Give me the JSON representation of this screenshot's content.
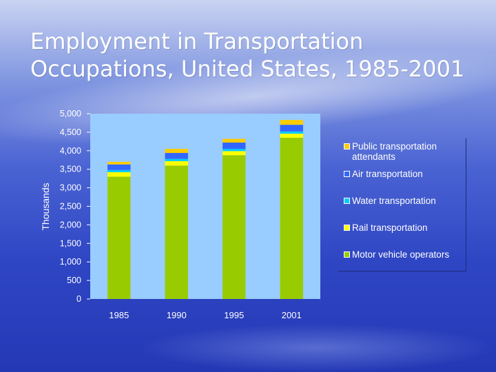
{
  "slide": {
    "title_line1": "Employment in Transportation",
    "title_line2": "Occupations, United States, 1985-2001"
  },
  "chart_data": {
    "type": "bar",
    "stacked": true,
    "ylabel": "Thousands",
    "xlabel": "",
    "ylim": [
      0,
      5000
    ],
    "ytick_values": [
      0,
      500,
      1000,
      1500,
      2000,
      2500,
      3000,
      3500,
      4000,
      4500,
      5000
    ],
    "ytick_labels": [
      "0",
      "500",
      "1,000",
      "1,500",
      "2,000",
      "2,500",
      "3,000",
      "3,500",
      "4,000",
      "4,500",
      "5,000"
    ],
    "categories": [
      "1985",
      "1990",
      "1995",
      "2001"
    ],
    "series": [
      {
        "name": "Motor vehicle operators",
        "color": "#99cc00",
        "values": [
          3300,
          3600,
          3880,
          4350
        ]
      },
      {
        "name": "Rail transportation",
        "color": "#ffff00",
        "values": [
          120,
          120,
          110,
          110
        ]
      },
      {
        "name": "Water transportation",
        "color": "#00ccff",
        "values": [
          60,
          60,
          60,
          60
        ]
      },
      {
        "name": "Air transportation",
        "color": "#3366ff",
        "values": [
          150,
          160,
          170,
          180
        ]
      },
      {
        "name": "Public transportation attendants",
        "color": "#ffcc00",
        "values": [
          70,
          110,
          100,
          130
        ]
      }
    ],
    "legend_order": [
      {
        "name_line1": "Public transportation",
        "name_line2": "attendants",
        "color": "#ffcc00"
      },
      {
        "name_line1": "Air transportation",
        "name_line2": "",
        "color": "#3366ff"
      },
      {
        "name_line1": "Water transportation",
        "name_line2": "",
        "color": "#00ccff"
      },
      {
        "name_line1": "Rail transportation",
        "name_line2": "",
        "color": "#ffff00"
      },
      {
        "name_line1": "Motor vehicle operators",
        "name_line2": "",
        "color": "#99cc00"
      }
    ],
    "legend_position": "right",
    "plot_background": "#99ccff",
    "grid": false
  }
}
